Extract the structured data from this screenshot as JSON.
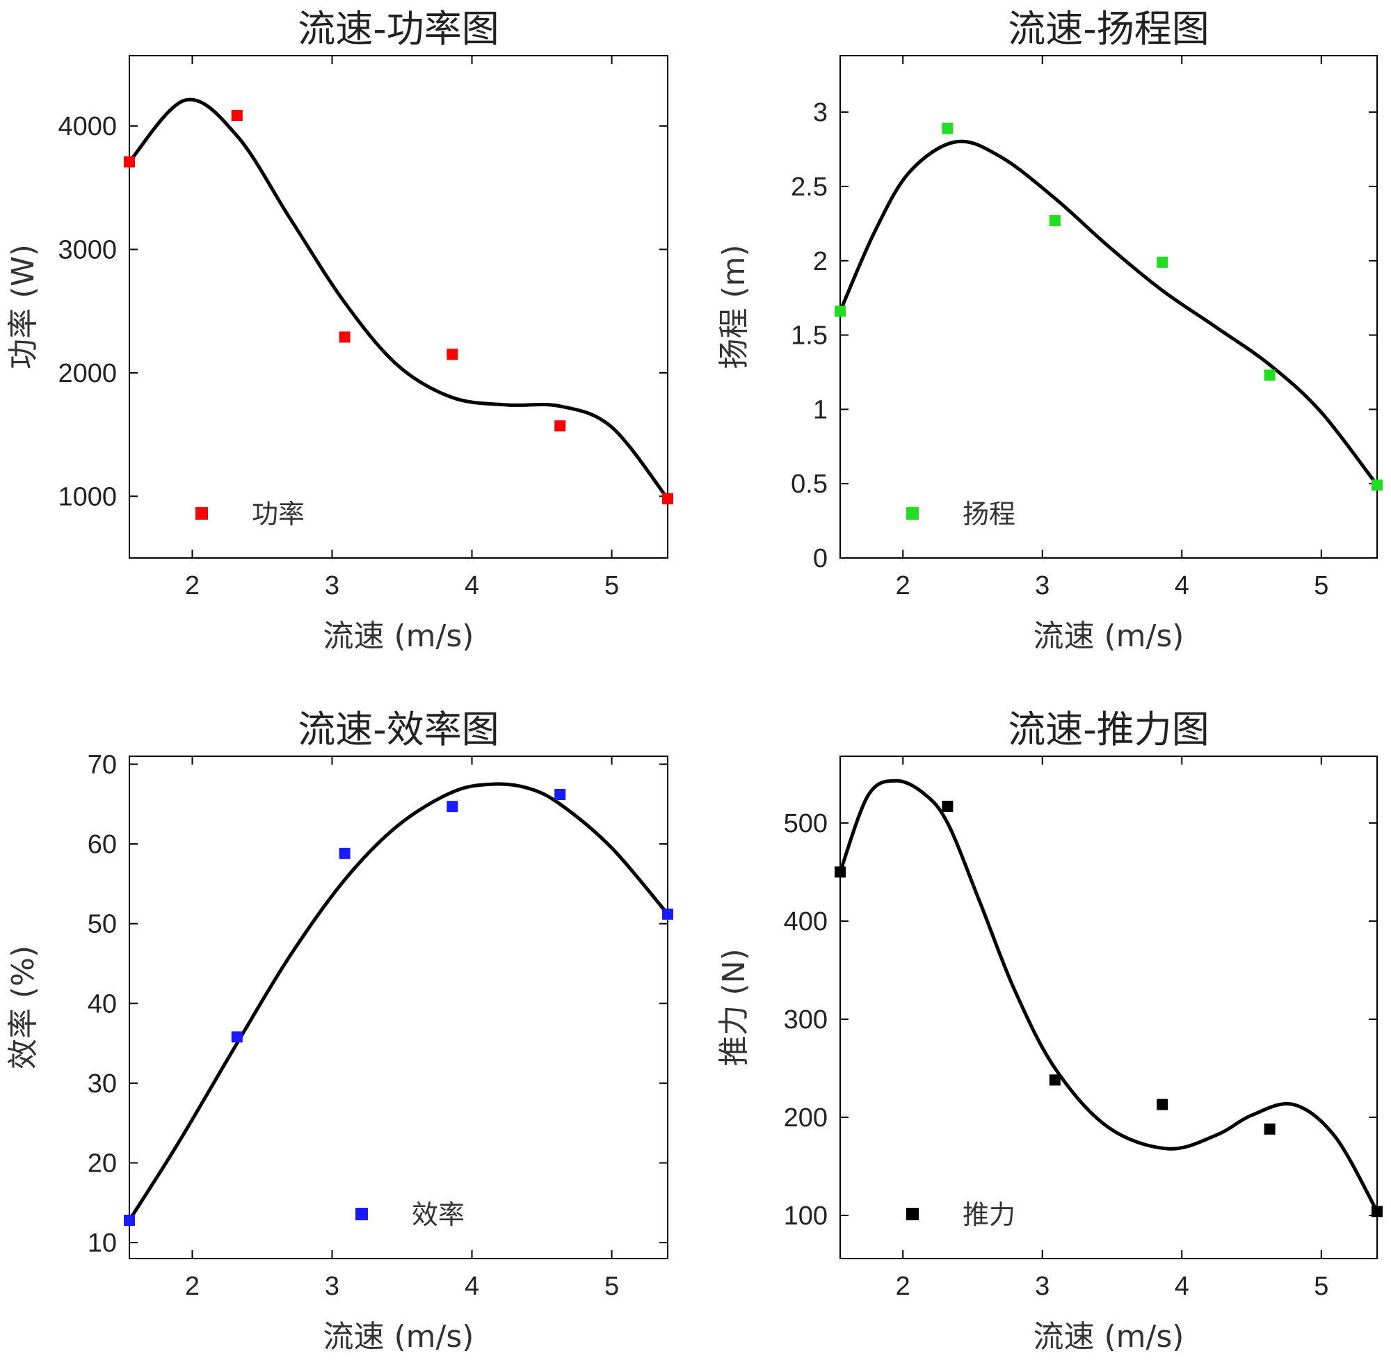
{
  "chart_data": [
    {
      "type": "scatter",
      "title": "流速-功率图",
      "xlabel": "流速 (m/s)",
      "ylabel": "功率 (W)",
      "xlim": [
        1.55,
        5.4
      ],
      "ylim": [
        500,
        4570
      ],
      "xticks": [
        2,
        3,
        4,
        5
      ],
      "yticks": [
        1000,
        2000,
        3000,
        4000
      ],
      "legend": "bottom-left",
      "color": "#ff0000",
      "series": [
        {
          "name": "功率",
          "x": [
            1.55,
            2.32,
            3.09,
            3.86,
            4.63,
            5.4
          ],
          "y": [
            3710,
            4085,
            2290,
            2150,
            1570,
            980
          ]
        }
      ],
      "fit_curve": {
        "x": [
          1.55,
          1.95,
          2.32,
          2.7,
          3.09,
          3.47,
          3.86,
          4.25,
          4.63,
          5.0,
          5.4
        ],
        "y": [
          3710,
          4210,
          3920,
          3250,
          2570,
          2060,
          1800,
          1740,
          1730,
          1560,
          980
        ]
      }
    },
    {
      "type": "scatter",
      "title": "流速-扬程图",
      "xlabel": "流速 (m/s)",
      "ylabel": "扬程 (m)",
      "xlim": [
        1.55,
        5.4
      ],
      "ylim": [
        0,
        3.38
      ],
      "xticks": [
        2,
        3,
        4,
        5
      ],
      "yticks": [
        0,
        0.5,
        1,
        1.5,
        2,
        2.5,
        3
      ],
      "legend": "bottom-left",
      "color": "#22dd22",
      "series": [
        {
          "name": "扬程",
          "x": [
            1.55,
            2.32,
            3.09,
            3.86,
            4.63,
            5.4
          ],
          "y": [
            1.66,
            2.89,
            2.27,
            1.99,
            1.23,
            0.49
          ]
        }
      ],
      "fit_curve": {
        "x": [
          1.55,
          1.8,
          2.05,
          2.38,
          2.7,
          3.09,
          3.47,
          3.86,
          4.25,
          4.63,
          5.0,
          5.4
        ],
        "y": [
          1.66,
          2.2,
          2.6,
          2.8,
          2.7,
          2.42,
          2.1,
          1.8,
          1.55,
          1.3,
          0.98,
          0.49
        ]
      }
    },
    {
      "type": "scatter",
      "title": "流速-效率图",
      "xlabel": "流速 (m/s)",
      "ylabel": "效率 (%)",
      "xlim": [
        1.55,
        5.4
      ],
      "ylim": [
        8,
        71
      ],
      "xticks": [
        2,
        3,
        4,
        5
      ],
      "yticks": [
        10,
        20,
        30,
        40,
        50,
        60,
        70
      ],
      "legend": "bottom-center",
      "color": "#1a1aff",
      "series": [
        {
          "name": "效率",
          "x": [
            1.55,
            2.32,
            3.09,
            3.86,
            4.63,
            5.4
          ],
          "y": [
            12.8,
            35.8,
            58.8,
            64.7,
            66.2,
            51.2
          ]
        }
      ],
      "fit_curve": {
        "x": [
          1.55,
          1.9,
          2.32,
          2.7,
          3.09,
          3.47,
          3.86,
          4.15,
          4.4,
          4.63,
          5.0,
          5.4
        ],
        "y": [
          12.8,
          22.5,
          35.0,
          46.0,
          55.5,
          62.3,
          66.5,
          67.5,
          67.0,
          65.0,
          59.5,
          51.2
        ]
      }
    },
    {
      "type": "scatter",
      "title": "流速-推力图",
      "xlabel": "流速 (m/s)",
      "ylabel": "推力 (N)",
      "xlim": [
        1.55,
        5.4
      ],
      "ylim": [
        56,
        568
      ],
      "xticks": [
        2,
        3,
        4,
        5
      ],
      "yticks": [
        100,
        200,
        300,
        400,
        500
      ],
      "legend": "bottom-left",
      "color": "#000000",
      "series": [
        {
          "name": "推力",
          "x": [
            1.55,
            2.32,
            3.09,
            3.86,
            4.63,
            5.4
          ],
          "y": [
            450,
            517,
            238,
            213,
            188,
            104
          ]
        }
      ],
      "fit_curve": {
        "x": [
          1.55,
          1.75,
          1.95,
          2.15,
          2.32,
          2.55,
          2.8,
          3.09,
          3.47,
          3.9,
          4.25,
          4.5,
          4.8,
          5.1,
          5.4
        ],
        "y": [
          450,
          528,
          543,
          530,
          500,
          420,
          330,
          250,
          190,
          168,
          182,
          202,
          213,
          180,
          104
        ]
      }
    }
  ]
}
